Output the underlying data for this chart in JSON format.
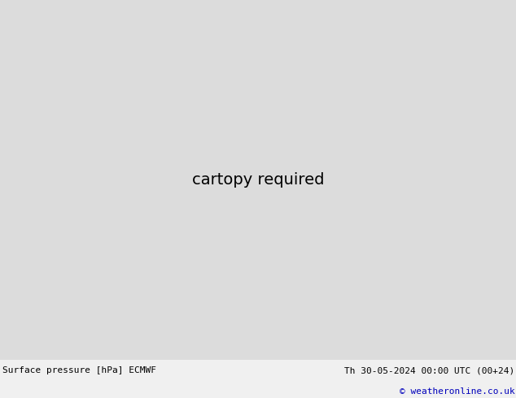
{
  "title_left": "Surface pressure [hPa] ECMWF",
  "title_right": "Th 30-05-2024 00:00 UTC (00+24)",
  "copyright": "© weatheronline.co.uk",
  "bg_color": "#dcdcdc",
  "land_color": "#c8e8c0",
  "mountain_color": "#a8a8a8",
  "ocean_color": "#dcdcdc",
  "isobar_blue_color": "#0000cc",
  "isobar_red_color": "#cc0000",
  "isobar_black_color": "#000000",
  "border_color": "#606060",
  "bottom_bar_color": "#f0f0f0",
  "bottom_text_color": "#000000",
  "copyright_color": "#0000bb",
  "font_size_labels": 7,
  "font_size_bottom": 8,
  "figsize": [
    6.34,
    4.9
  ],
  "dpi": 100,
  "lon_min": -175,
  "lon_max": -45,
  "lat_min": 10,
  "lat_max": 85
}
